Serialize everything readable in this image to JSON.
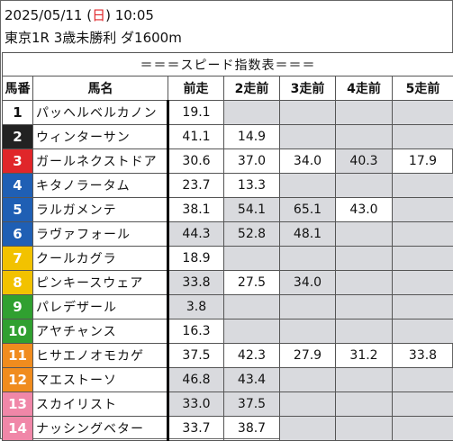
{
  "header": {
    "date_prefix": "2025/05/11 (",
    "weekday": "日",
    "date_suffix": ") 10:05",
    "race": "東京1R 3歳未勝利 ダ1600m"
  },
  "table": {
    "title": "＝＝＝スピード指数表＝＝＝",
    "columns": [
      "馬番",
      "馬名",
      "前走",
      "2走前",
      "3走前",
      "4走前",
      "5走前"
    ],
    "gate_colors": {
      "1": "#ffffff",
      "2": "#222222",
      "3": "#e0262a",
      "4": "#1f5fb4",
      "5": "#1f5fb4",
      "6": "#1f5fb4",
      "7": "#f2c200",
      "8": "#f2c200",
      "9": "#30a030",
      "10": "#30a030",
      "11": "#f08c1e",
      "12": "#f08c1e",
      "13": "#f087a8",
      "14": "#f087a8"
    },
    "rows": [
      {
        "num": "1",
        "name": "パッヘルベルカノン",
        "vals": [
          "19.1",
          "",
          "",
          "",
          ""
        ],
        "shade": [
          false,
          true,
          true,
          true,
          true
        ]
      },
      {
        "num": "2",
        "name": "ウィンターサン",
        "vals": [
          "41.1",
          "14.9",
          "",
          "",
          ""
        ],
        "shade": [
          false,
          false,
          true,
          true,
          true
        ]
      },
      {
        "num": "3",
        "name": "ガールネクストドア",
        "vals": [
          "30.6",
          "37.0",
          "34.0",
          "40.3",
          "17.9"
        ],
        "shade": [
          false,
          false,
          false,
          true,
          false
        ]
      },
      {
        "num": "4",
        "name": "キタノラータム",
        "vals": [
          "23.7",
          "13.3",
          "",
          "",
          ""
        ],
        "shade": [
          false,
          false,
          true,
          true,
          true
        ]
      },
      {
        "num": "5",
        "name": "ラルガメンテ",
        "vals": [
          "38.1",
          "54.1",
          "65.1",
          "43.0",
          ""
        ],
        "shade": [
          false,
          true,
          true,
          false,
          true
        ]
      },
      {
        "num": "6",
        "name": "ラヴァフォール",
        "vals": [
          "44.3",
          "52.8",
          "48.1",
          "",
          ""
        ],
        "shade": [
          true,
          true,
          true,
          true,
          true
        ]
      },
      {
        "num": "7",
        "name": "クールカグラ",
        "vals": [
          "18.9",
          "",
          "",
          "",
          ""
        ],
        "shade": [
          false,
          true,
          true,
          true,
          true
        ]
      },
      {
        "num": "8",
        "name": "ピンキースウェア",
        "vals": [
          "33.8",
          "27.5",
          "34.0",
          "",
          ""
        ],
        "shade": [
          true,
          false,
          true,
          true,
          true
        ]
      },
      {
        "num": "9",
        "name": "パレデザール",
        "vals": [
          "3.8",
          "",
          "",
          "",
          ""
        ],
        "shade": [
          true,
          true,
          true,
          true,
          true
        ]
      },
      {
        "num": "10",
        "name": "アヤチャンス",
        "vals": [
          "16.3",
          "",
          "",
          "",
          ""
        ],
        "shade": [
          false,
          true,
          true,
          true,
          true
        ]
      },
      {
        "num": "11",
        "name": "ヒサエノオモカゲ",
        "vals": [
          "37.5",
          "42.3",
          "27.9",
          "31.2",
          "33.8"
        ],
        "shade": [
          false,
          false,
          false,
          false,
          false
        ]
      },
      {
        "num": "12",
        "name": "マエストーソ",
        "vals": [
          "46.8",
          "43.4",
          "",
          "",
          ""
        ],
        "shade": [
          true,
          true,
          true,
          true,
          true
        ]
      },
      {
        "num": "13",
        "name": "スカイリスト",
        "vals": [
          "33.0",
          "37.5",
          "",
          "",
          ""
        ],
        "shade": [
          true,
          true,
          true,
          true,
          true
        ]
      },
      {
        "num": "14",
        "name": "ナッシングベター",
        "vals": [
          "33.7",
          "38.7",
          "",
          "",
          ""
        ],
        "shade": [
          false,
          false,
          true,
          true,
          true
        ]
      }
    ]
  }
}
